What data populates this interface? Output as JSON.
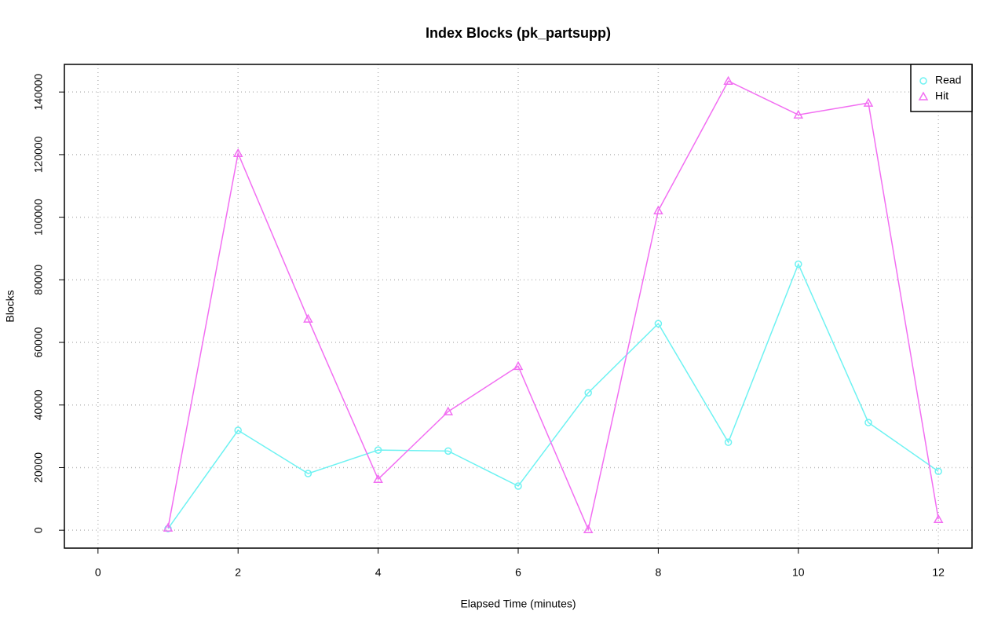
{
  "chart_data": {
    "type": "line",
    "title": "Index Blocks (pk_partsupp)",
    "xlabel": "Elapsed Time (minutes)",
    "ylabel": "Blocks",
    "x": [
      1,
      2,
      3,
      4,
      5,
      6,
      7,
      8,
      9,
      10,
      11,
      12
    ],
    "series": [
      {
        "name": "Read",
        "color": "#6ef2f2",
        "marker": "circle",
        "values": [
          500,
          31900,
          18100,
          25600,
          25300,
          14100,
          43900,
          66000,
          28100,
          85000,
          34400,
          18800
        ]
      },
      {
        "name": "Hit",
        "color": "#f26ef2",
        "marker": "triangle",
        "values": [
          750,
          120400,
          67500,
          16300,
          37900,
          52400,
          250,
          102100,
          143500,
          132700,
          136500,
          3500
        ]
      }
    ],
    "xlim": [
      -0.48,
      12.48
    ],
    "xticks": [
      0,
      2,
      4,
      6,
      8,
      10,
      12
    ],
    "ylim": [
      -5724,
      148827
    ],
    "yticks": [
      0,
      20000,
      40000,
      60000,
      80000,
      100000,
      120000,
      140000
    ],
    "grid": true,
    "legend": "top-right"
  }
}
